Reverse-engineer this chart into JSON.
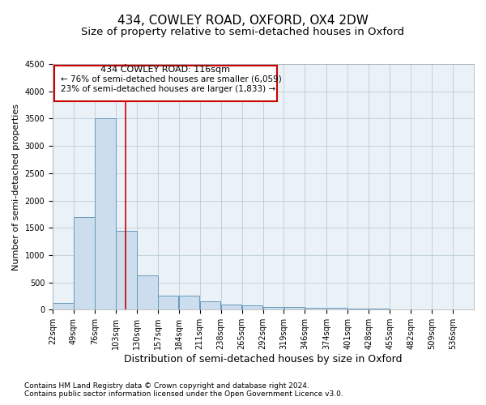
{
  "title": "434, COWLEY ROAD, OXFORD, OX4 2DW",
  "subtitle": "Size of property relative to semi-detached houses in Oxford",
  "xlabel": "Distribution of semi-detached houses by size in Oxford",
  "ylabel": "Number of semi-detached properties",
  "footer_line1": "Contains HM Land Registry data © Crown copyright and database right 2024.",
  "footer_line2": "Contains public sector information licensed under the Open Government Licence v3.0.",
  "bar_color": "#ccdded",
  "bar_edge_color": "#6699bb",
  "grid_color": "#b8ccd8",
  "bg_color": "#eaf2f8",
  "annotation_box_color": "#ffffff",
  "annotation_border_color": "#cc0000",
  "vline_color": "#cc0000",
  "property_size": 116,
  "annotation_title": "434 COWLEY ROAD: 116sqm",
  "annotation_line1": "← 76% of semi-detached houses are smaller (6,059)",
  "annotation_line2": "23% of semi-detached houses are larger (1,833) →",
  "bins": [
    22,
    49,
    76,
    103,
    130,
    157,
    184,
    211,
    238,
    265,
    292,
    319,
    346,
    374,
    401,
    428,
    455,
    482,
    509,
    536,
    563
  ],
  "counts": [
    125,
    1700,
    3500,
    1450,
    625,
    260,
    260,
    150,
    95,
    75,
    55,
    45,
    35,
    28,
    20,
    15,
    12,
    10,
    8,
    6
  ],
  "ylim": [
    0,
    4500
  ],
  "yticks": [
    0,
    500,
    1000,
    1500,
    2000,
    2500,
    3000,
    3500,
    4000,
    4500
  ],
  "title_fontsize": 11,
  "subtitle_fontsize": 9.5,
  "tick_fontsize": 7,
  "ylabel_fontsize": 8,
  "xlabel_fontsize": 9,
  "annotation_fontsize": 8,
  "footer_fontsize": 6.5
}
